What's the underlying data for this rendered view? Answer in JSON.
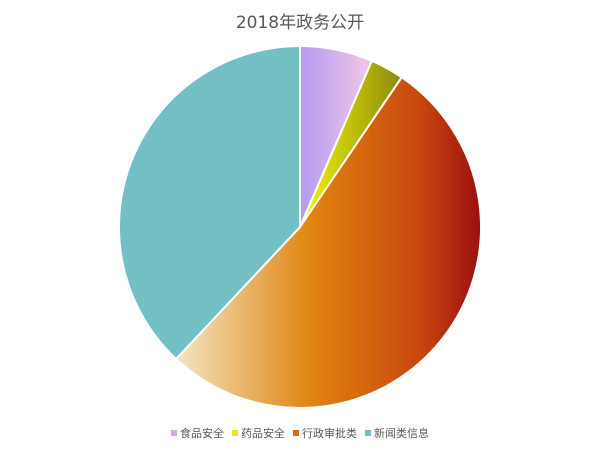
{
  "chart_data": {
    "type": "pie",
    "title": "2018年政务公开",
    "categories": [
      "食品安全",
      "药品安全",
      "行政审批类",
      "新闻类信息"
    ],
    "values": [
      6.5,
      3,
      52.5,
      38
    ],
    "colors": [
      "#d9a6e6",
      "#e8e81a",
      "#d9700f",
      "#72bfc4"
    ],
    "legend_position": "bottom",
    "start_angle": 0
  }
}
